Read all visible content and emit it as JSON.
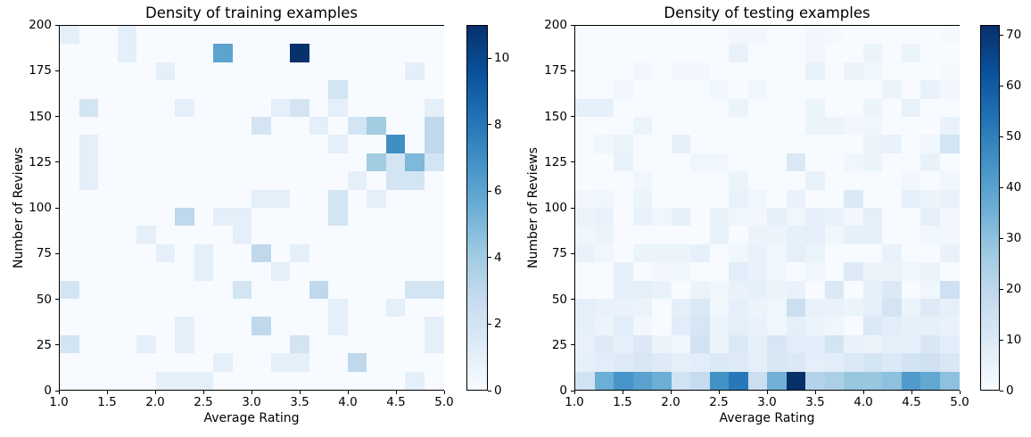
{
  "figure": {
    "background": "#ffffff",
    "cell_zero_color": "#f7fbff",
    "max_color": "#08306b"
  },
  "chart_data": [
    {
      "type": "heatmap",
      "title": "Density of training examples",
      "xlabel": "Average Rating",
      "ylabel": "Number of Reviews",
      "colormap": "Blues",
      "x_range": [
        1.0,
        5.0
      ],
      "y_range": [
        0,
        200
      ],
      "x_bins": 20,
      "y_bins": 20,
      "x_ticks": [
        "1.0",
        "1.5",
        "2.0",
        "2.5",
        "3.0",
        "3.5",
        "4.0",
        "4.5",
        "5.0"
      ],
      "y_ticks": [
        "0",
        "25",
        "50",
        "75",
        "100",
        "125",
        "150",
        "175",
        "200"
      ],
      "vmin": 0,
      "vmax": 11,
      "colorbar_ticks": [
        0,
        2,
        4,
        6,
        8,
        10
      ],
      "legend_position": "right-colorbar",
      "grid": false,
      "rows_order": "top_to_bottom (reviews 200 -> 0)",
      "values": [
        [
          1,
          0,
          0,
          1,
          0,
          0,
          0,
          0,
          0,
          0,
          0,
          0,
          0,
          0,
          0,
          0,
          0,
          0,
          0,
          0
        ],
        [
          0,
          0,
          0,
          1,
          0,
          0,
          0,
          0,
          6,
          0,
          0,
          0,
          11,
          0,
          0,
          0,
          0,
          0,
          0,
          0
        ],
        [
          0,
          0,
          0,
          0,
          0,
          1,
          0,
          0,
          0,
          0,
          0,
          0,
          0,
          0,
          0,
          0,
          0,
          0,
          1,
          0
        ],
        [
          0,
          0,
          0,
          0,
          0,
          0,
          0,
          0,
          0,
          0,
          0,
          0,
          0,
          0,
          2,
          0,
          0,
          0,
          0,
          0
        ],
        [
          0,
          2,
          0,
          0,
          0,
          0,
          1,
          0,
          0,
          0,
          0,
          1,
          2,
          0,
          1,
          0,
          0,
          0,
          0,
          1
        ],
        [
          0,
          0,
          0,
          0,
          0,
          0,
          0,
          0,
          0,
          0,
          2,
          0,
          0,
          1,
          0,
          2,
          4,
          0,
          0,
          3
        ],
        [
          0,
          1,
          0,
          0,
          0,
          0,
          0,
          0,
          0,
          0,
          0,
          0,
          0,
          0,
          1,
          0,
          0,
          7,
          0,
          3
        ],
        [
          0,
          1,
          0,
          0,
          0,
          0,
          0,
          0,
          0,
          0,
          0,
          0,
          0,
          0,
          0,
          0,
          4,
          2,
          5,
          2
        ],
        [
          0,
          1,
          0,
          0,
          0,
          0,
          0,
          0,
          0,
          0,
          0,
          0,
          0,
          0,
          0,
          1,
          0,
          2,
          2,
          0
        ],
        [
          0,
          0,
          0,
          0,
          0,
          0,
          0,
          0,
          0,
          0,
          1,
          1,
          0,
          0,
          2,
          0,
          1,
          0,
          0,
          0
        ],
        [
          0,
          0,
          0,
          0,
          0,
          0,
          3,
          0,
          1,
          1,
          0,
          0,
          0,
          0,
          2,
          0,
          0,
          0,
          0,
          0
        ],
        [
          0,
          0,
          0,
          0,
          1,
          0,
          0,
          0,
          0,
          1,
          0,
          0,
          0,
          0,
          0,
          0,
          0,
          0,
          0,
          0
        ],
        [
          0,
          0,
          0,
          0,
          0,
          1,
          0,
          1,
          0,
          0,
          3,
          0,
          1,
          0,
          0,
          0,
          0,
          0,
          0,
          0
        ],
        [
          0,
          0,
          0,
          0,
          0,
          0,
          0,
          1,
          0,
          0,
          0,
          1,
          0,
          0,
          0,
          0,
          0,
          0,
          0,
          0
        ],
        [
          2,
          0,
          0,
          0,
          0,
          0,
          0,
          0,
          0,
          2,
          0,
          0,
          0,
          3,
          0,
          0,
          0,
          0,
          2,
          2
        ],
        [
          0,
          0,
          0,
          0,
          0,
          0,
          0,
          0,
          0,
          0,
          0,
          0,
          0,
          0,
          1,
          0,
          0,
          1,
          0,
          0
        ],
        [
          0,
          0,
          0,
          0,
          0,
          0,
          1,
          0,
          0,
          0,
          3,
          0,
          0,
          0,
          1,
          0,
          0,
          0,
          0,
          1
        ],
        [
          2,
          0,
          0,
          0,
          1,
          0,
          1,
          0,
          0,
          0,
          0,
          0,
          2,
          0,
          0,
          0,
          0,
          0,
          0,
          1
        ],
        [
          0,
          0,
          0,
          0,
          0,
          0,
          0,
          0,
          1,
          0,
          0,
          1,
          1,
          0,
          0,
          3,
          0,
          0,
          0,
          0
        ],
        [
          0,
          0,
          0,
          0,
          0,
          1,
          1,
          1,
          0,
          0,
          0,
          0,
          0,
          0,
          0,
          0,
          0,
          0,
          1,
          0
        ]
      ]
    },
    {
      "type": "heatmap",
      "title": "Density of testing examples",
      "xlabel": "Average Rating",
      "ylabel": "Number of Reviews",
      "colormap": "Blues",
      "x_range": [
        1.0,
        5.0
      ],
      "y_range": [
        0,
        200
      ],
      "x_bins": 20,
      "y_bins": 20,
      "x_ticks": [
        "1.0",
        "1.5",
        "2.0",
        "2.5",
        "3.0",
        "3.5",
        "4.0",
        "4.5",
        "5.0"
      ],
      "y_ticks": [
        "0",
        "25",
        "50",
        "75",
        "100",
        "125",
        "150",
        "175",
        "200"
      ],
      "vmin": 0,
      "vmax": 72,
      "colorbar_ticks": [
        0,
        10,
        20,
        30,
        40,
        50,
        60,
        70
      ],
      "legend_position": "right-colorbar",
      "grid": false,
      "rows_order": "top_to_bottom (reviews 200 -> 0)",
      "values": [
        [
          0,
          0,
          0,
          0,
          0,
          0,
          0,
          0,
          2,
          2,
          0,
          0,
          2,
          1,
          0,
          0,
          0,
          0,
          0,
          1
        ],
        [
          0,
          0,
          0,
          0,
          0,
          0,
          0,
          0,
          5,
          0,
          0,
          0,
          2,
          0,
          0,
          4,
          0,
          4,
          0,
          0
        ],
        [
          0,
          0,
          0,
          2,
          0,
          2,
          2,
          0,
          0,
          0,
          0,
          0,
          5,
          0,
          4,
          3,
          0,
          0,
          0,
          1
        ],
        [
          0,
          0,
          2,
          0,
          0,
          0,
          0,
          3,
          0,
          3,
          0,
          0,
          0,
          0,
          0,
          0,
          4,
          0,
          5,
          2
        ],
        [
          6,
          6,
          0,
          0,
          0,
          0,
          0,
          0,
          4,
          0,
          0,
          0,
          4,
          0,
          0,
          4,
          0,
          5,
          0,
          0
        ],
        [
          0,
          0,
          0,
          4,
          0,
          0,
          0,
          0,
          0,
          0,
          0,
          0,
          4,
          4,
          2,
          3,
          0,
          0,
          0,
          5
        ],
        [
          0,
          3,
          4,
          0,
          0,
          6,
          0,
          0,
          0,
          0,
          0,
          0,
          0,
          0,
          0,
          4,
          5,
          0,
          3,
          13
        ],
        [
          0,
          0,
          5,
          0,
          0,
          0,
          3,
          3,
          0,
          0,
          0,
          10,
          0,
          0,
          3,
          4,
          0,
          0,
          5,
          0
        ],
        [
          0,
          0,
          0,
          3,
          0,
          0,
          0,
          0,
          4,
          0,
          0,
          0,
          5,
          0,
          0,
          0,
          0,
          2,
          0,
          3
        ],
        [
          2,
          3,
          0,
          4,
          0,
          0,
          0,
          0,
          5,
          3,
          0,
          5,
          0,
          0,
          10,
          0,
          0,
          6,
          4,
          5
        ],
        [
          4,
          5,
          0,
          5,
          3,
          6,
          0,
          5,
          3,
          2,
          6,
          3,
          6,
          5,
          2,
          7,
          0,
          0,
          7,
          2
        ],
        [
          3,
          4,
          0,
          0,
          0,
          0,
          0,
          5,
          0,
          4,
          4,
          6,
          7,
          3,
          6,
          6,
          0,
          0,
          3,
          2
        ],
        [
          5,
          3,
          0,
          4,
          4,
          4,
          6,
          0,
          3,
          5,
          3,
          7,
          4,
          0,
          0,
          0,
          5,
          0,
          0,
          5
        ],
        [
          0,
          0,
          6,
          0,
          2,
          3,
          0,
          0,
          8,
          5,
          3,
          0,
          3,
          0,
          9,
          4,
          4,
          3,
          4,
          0
        ],
        [
          0,
          0,
          6,
          7,
          5,
          0,
          4,
          3,
          5,
          6,
          4,
          5,
          0,
          10,
          0,
          6,
          10,
          0,
          3,
          15
        ],
        [
          7,
          5,
          5,
          4,
          0,
          7,
          10,
          3,
          6,
          4,
          3,
          16,
          5,
          5,
          4,
          6,
          13,
          4,
          9,
          6
        ],
        [
          6,
          4,
          8,
          2,
          0,
          8,
          12,
          4,
          7,
          5,
          3,
          7,
          4,
          3,
          0,
          10,
          8,
          6,
          6,
          5
        ],
        [
          5,
          9,
          6,
          10,
          4,
          3,
          14,
          4,
          10,
          6,
          12,
          8,
          8,
          13,
          5,
          4,
          7,
          6,
          11,
          8
        ],
        [
          6,
          8,
          9,
          11,
          9,
          7,
          8,
          10,
          9,
          7,
          11,
          10,
          7,
          8,
          10,
          13,
          10,
          14,
          15,
          11
        ],
        [
          14,
          36,
          44,
          40,
          36,
          14,
          18,
          45,
          52,
          16,
          35,
          72,
          22,
          24,
          28,
          28,
          30,
          42,
          38,
          30
        ]
      ]
    }
  ]
}
